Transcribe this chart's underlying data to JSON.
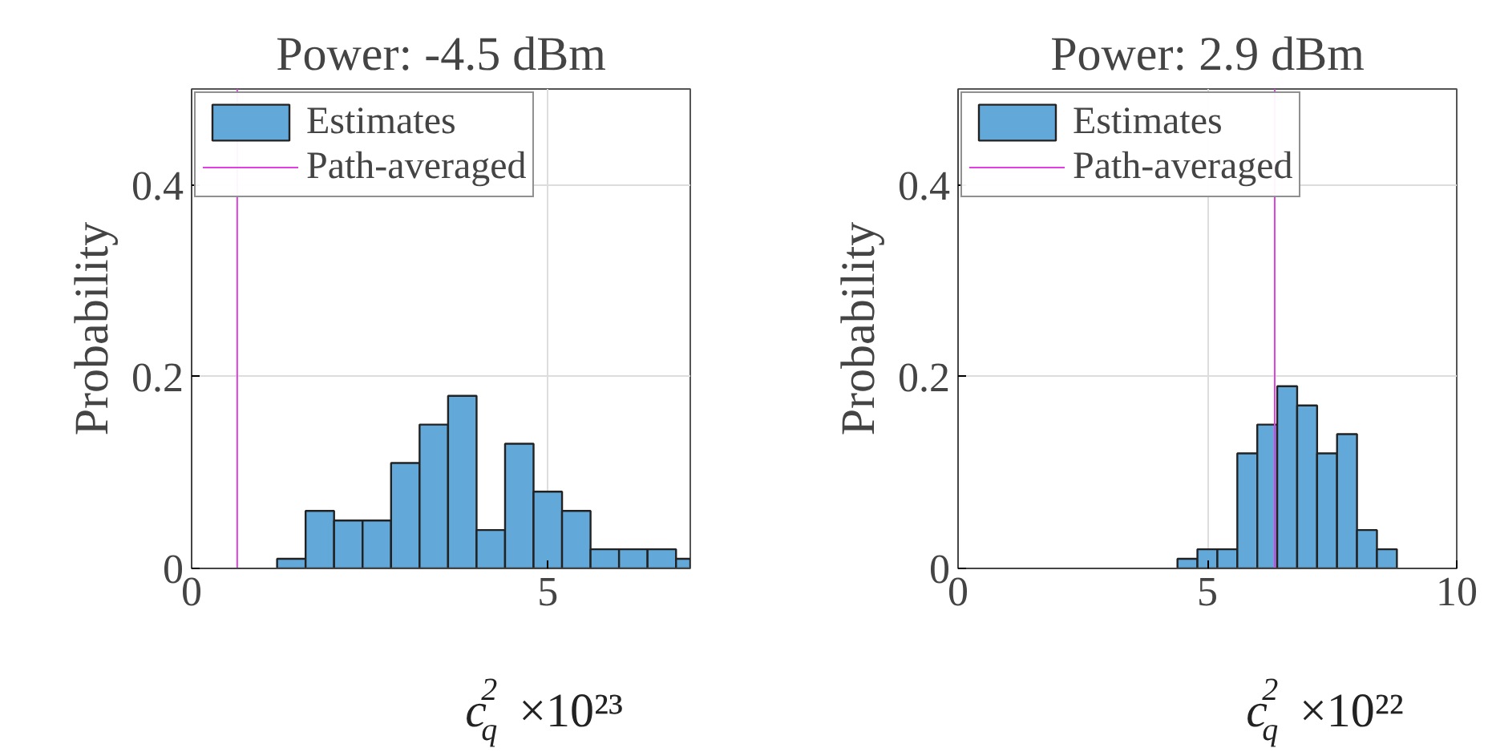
{
  "chart_data": [
    {
      "type": "histogram",
      "title": "Power: -4.5 dBm",
      "xlabel": "c$_{q}$$^{2}$",
      "ylabel": "Probability",
      "annotations": [
        "×10²³"
      ],
      "bins": [
        1.2,
        1.6,
        2.0,
        2.4,
        2.8,
        3.2,
        3.6,
        4.0,
        4.4,
        4.8,
        5.2,
        5.6,
        6.0,
        6.4,
        6.8,
        7.0
      ],
      "series": [
        {
          "name": "Estimates",
          "color": "#62a8d8",
          "values": [
            0.01,
            0.06,
            0.05,
            0.05,
            0.11,
            0.15,
            0.18,
            0.04,
            0.13,
            0.08,
            0.06,
            0.02,
            0.02,
            0.02,
            0.01
          ]
        }
      ],
      "ref_lines": [
        {
          "axis": "x",
          "value": 0.64,
          "label": "Path-averaged",
          "color": "#e040e0"
        }
      ],
      "xlim": [
        0,
        7
      ],
      "ylim": [
        0,
        0.5
      ],
      "xticks": [
        0,
        5
      ],
      "yticks": [
        0,
        0.2,
        0.4
      ],
      "grid": true,
      "legend": "top left"
    },
    {
      "type": "histogram",
      "title": "Power: 2.9 dBm",
      "xlabel": "c$_{q}$$^{2}$",
      "ylabel": "Probability",
      "annotations": [
        "×10²²"
      ],
      "bins": [
        4.4,
        4.8,
        5.2,
        5.6,
        6.0,
        6.4,
        6.8,
        7.2,
        7.6,
        8.0,
        8.4,
        8.8
      ],
      "series": [
        {
          "name": "Estimates",
          "color": "#62a8d8",
          "values": [
            0.01,
            0.02,
            0.02,
            0.12,
            0.15,
            0.19,
            0.17,
            0.12,
            0.14,
            0.04,
            0.02
          ]
        }
      ],
      "ref_lines": [
        {
          "axis": "x",
          "value": 6.35,
          "label": "Path-averaged",
          "color": "#e040e0"
        }
      ],
      "xlim": [
        0,
        10
      ],
      "ylim": [
        0,
        0.5
      ],
      "xticks": [
        0,
        5,
        10
      ],
      "yticks": [
        0,
        0.2,
        0.4
      ],
      "grid": true,
      "legend": "top left"
    }
  ]
}
